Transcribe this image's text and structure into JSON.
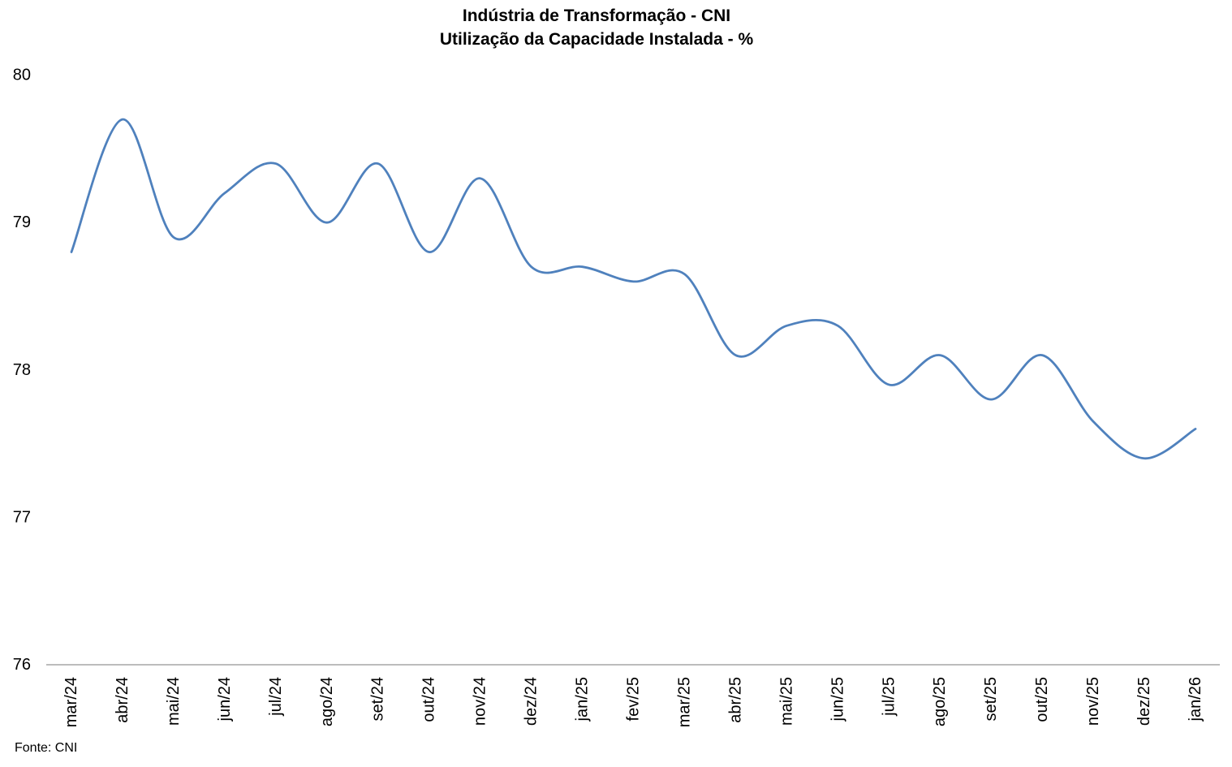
{
  "title": {
    "line1": "Indústria de Transformação - CNI",
    "line2": "Utilização da Capacidade Instalada - %"
  },
  "source": {
    "label": "Fonte: CNI"
  },
  "colors": {
    "line": "#4F81BD",
    "axis": "#A6A6A6",
    "text": "#000000"
  },
  "chart_data": {
    "type": "line",
    "title": "Indústria de Transformação - CNI",
    "subtitle": "Utilização da Capacidade Instalada - %",
    "categories": [
      "mar/24",
      "abr/24",
      "mai/24",
      "jun/24",
      "jul/24",
      "ago/24",
      "set/24",
      "out/24",
      "nov/24",
      "dez/24",
      "jan/25",
      "fev/25",
      "mar/25",
      "abr/25",
      "mai/25",
      "jun/25",
      "jul/25",
      "ago/25",
      "set/25",
      "out/25",
      "nov/25",
      "dez/25",
      "jan/26"
    ],
    "values": [
      78.8,
      79.7,
      78.9,
      79.2,
      79.4,
      79.0,
      79.4,
      78.8,
      79.3,
      78.7,
      78.7,
      78.6,
      78.65,
      78.1,
      78.3,
      78.3,
      77.9,
      78.1,
      77.8,
      78.1,
      77.65,
      77.4,
      77.6
    ],
    "xlabel": "",
    "ylabel": "",
    "ylim": [
      76,
      80
    ],
    "yticks": [
      76,
      77,
      78,
      79,
      80
    ],
    "grid": false,
    "legend": "none",
    "smooth": true,
    "source": "Fonte: CNI"
  }
}
